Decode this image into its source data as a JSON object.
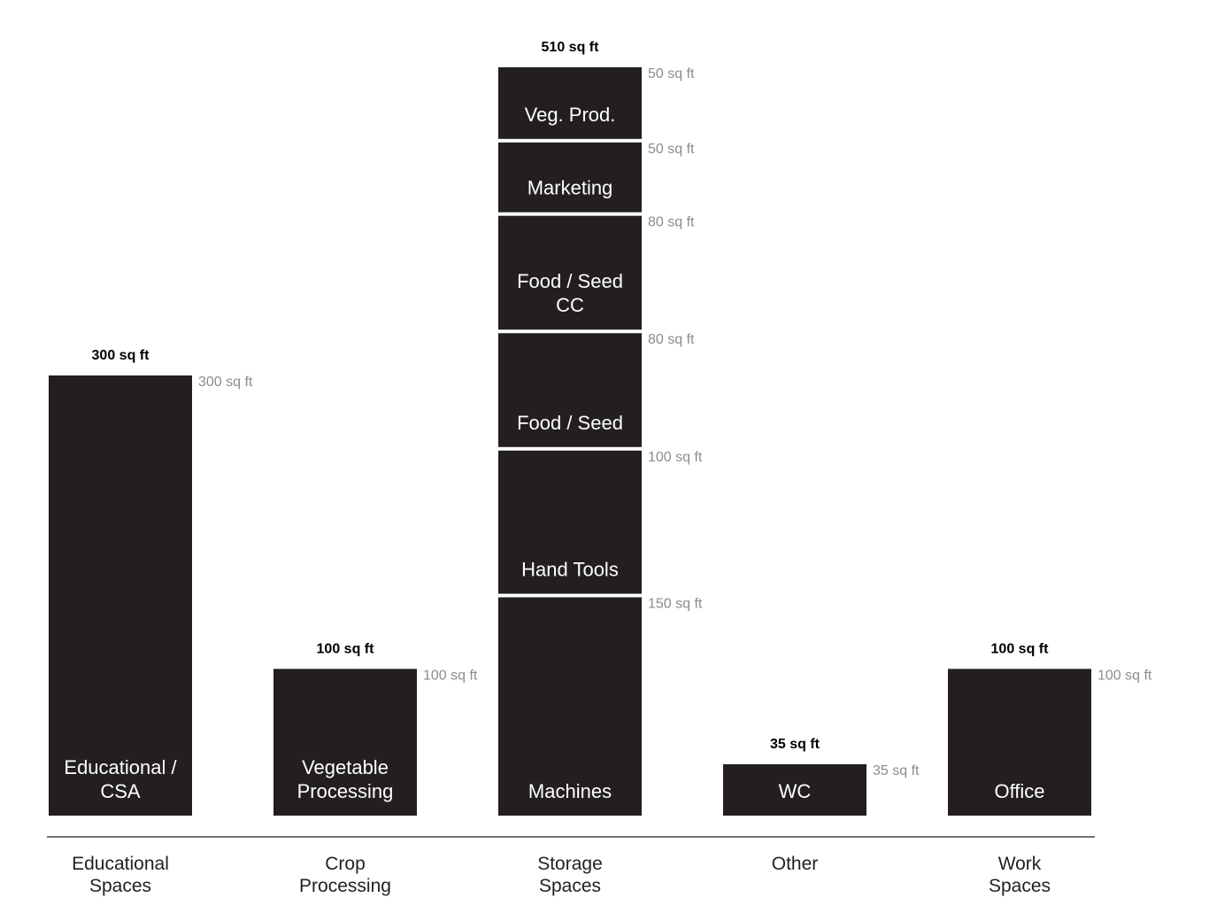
{
  "chart_data": {
    "type": "bar",
    "stacked": true,
    "unit": "sq ft",
    "ylim": [
      0,
      510
    ],
    "grid": false,
    "legend": "none",
    "colors": {
      "bar": "#231f20",
      "segment_text": "#ffffff",
      "value_text": "#8c8c8c",
      "total_text": "#000000"
    },
    "groups": [
      {
        "category": [
          "Educational",
          "Spaces"
        ],
        "total_label": "300 sq ft",
        "segments": [
          {
            "label": [
              "Educational /",
              "CSA"
            ],
            "value": 300,
            "value_label": "300 sq ft"
          }
        ]
      },
      {
        "category": [
          "Crop",
          "Processing"
        ],
        "total_label": "100 sq ft",
        "segments": [
          {
            "label": [
              "Vegetable",
              "Processing"
            ],
            "value": 100,
            "value_label": "100 sq ft"
          }
        ]
      },
      {
        "category": [
          "Storage",
          "Spaces"
        ],
        "total_label": "510 sq ft",
        "segments": [
          {
            "label": [
              "Machines"
            ],
            "value": 150,
            "value_label": "150 sq ft"
          },
          {
            "label": [
              "Hand Tools"
            ],
            "value": 100,
            "value_label": "100 sq ft"
          },
          {
            "label": [
              "Food / Seed"
            ],
            "value": 80,
            "value_label": "80 sq ft"
          },
          {
            "label": [
              "Food / Seed",
              "CC"
            ],
            "value": 80,
            "value_label": "80 sq ft"
          },
          {
            "label": [
              "Marketing"
            ],
            "value": 50,
            "value_label": "50 sq ft"
          },
          {
            "label": [
              "Veg. Prod."
            ],
            "value": 50,
            "value_label": "50 sq ft"
          }
        ]
      },
      {
        "category": [
          "Other"
        ],
        "total_label": "35 sq ft",
        "segments": [
          {
            "label": [
              "WC"
            ],
            "value": 35,
            "value_label": "35 sq ft"
          }
        ]
      },
      {
        "category": [
          "Work",
          "Spaces"
        ],
        "total_label": "100 sq ft",
        "segments": [
          {
            "label": [
              "Office"
            ],
            "value": 100,
            "value_label": "100 sq ft"
          }
        ]
      }
    ]
  }
}
